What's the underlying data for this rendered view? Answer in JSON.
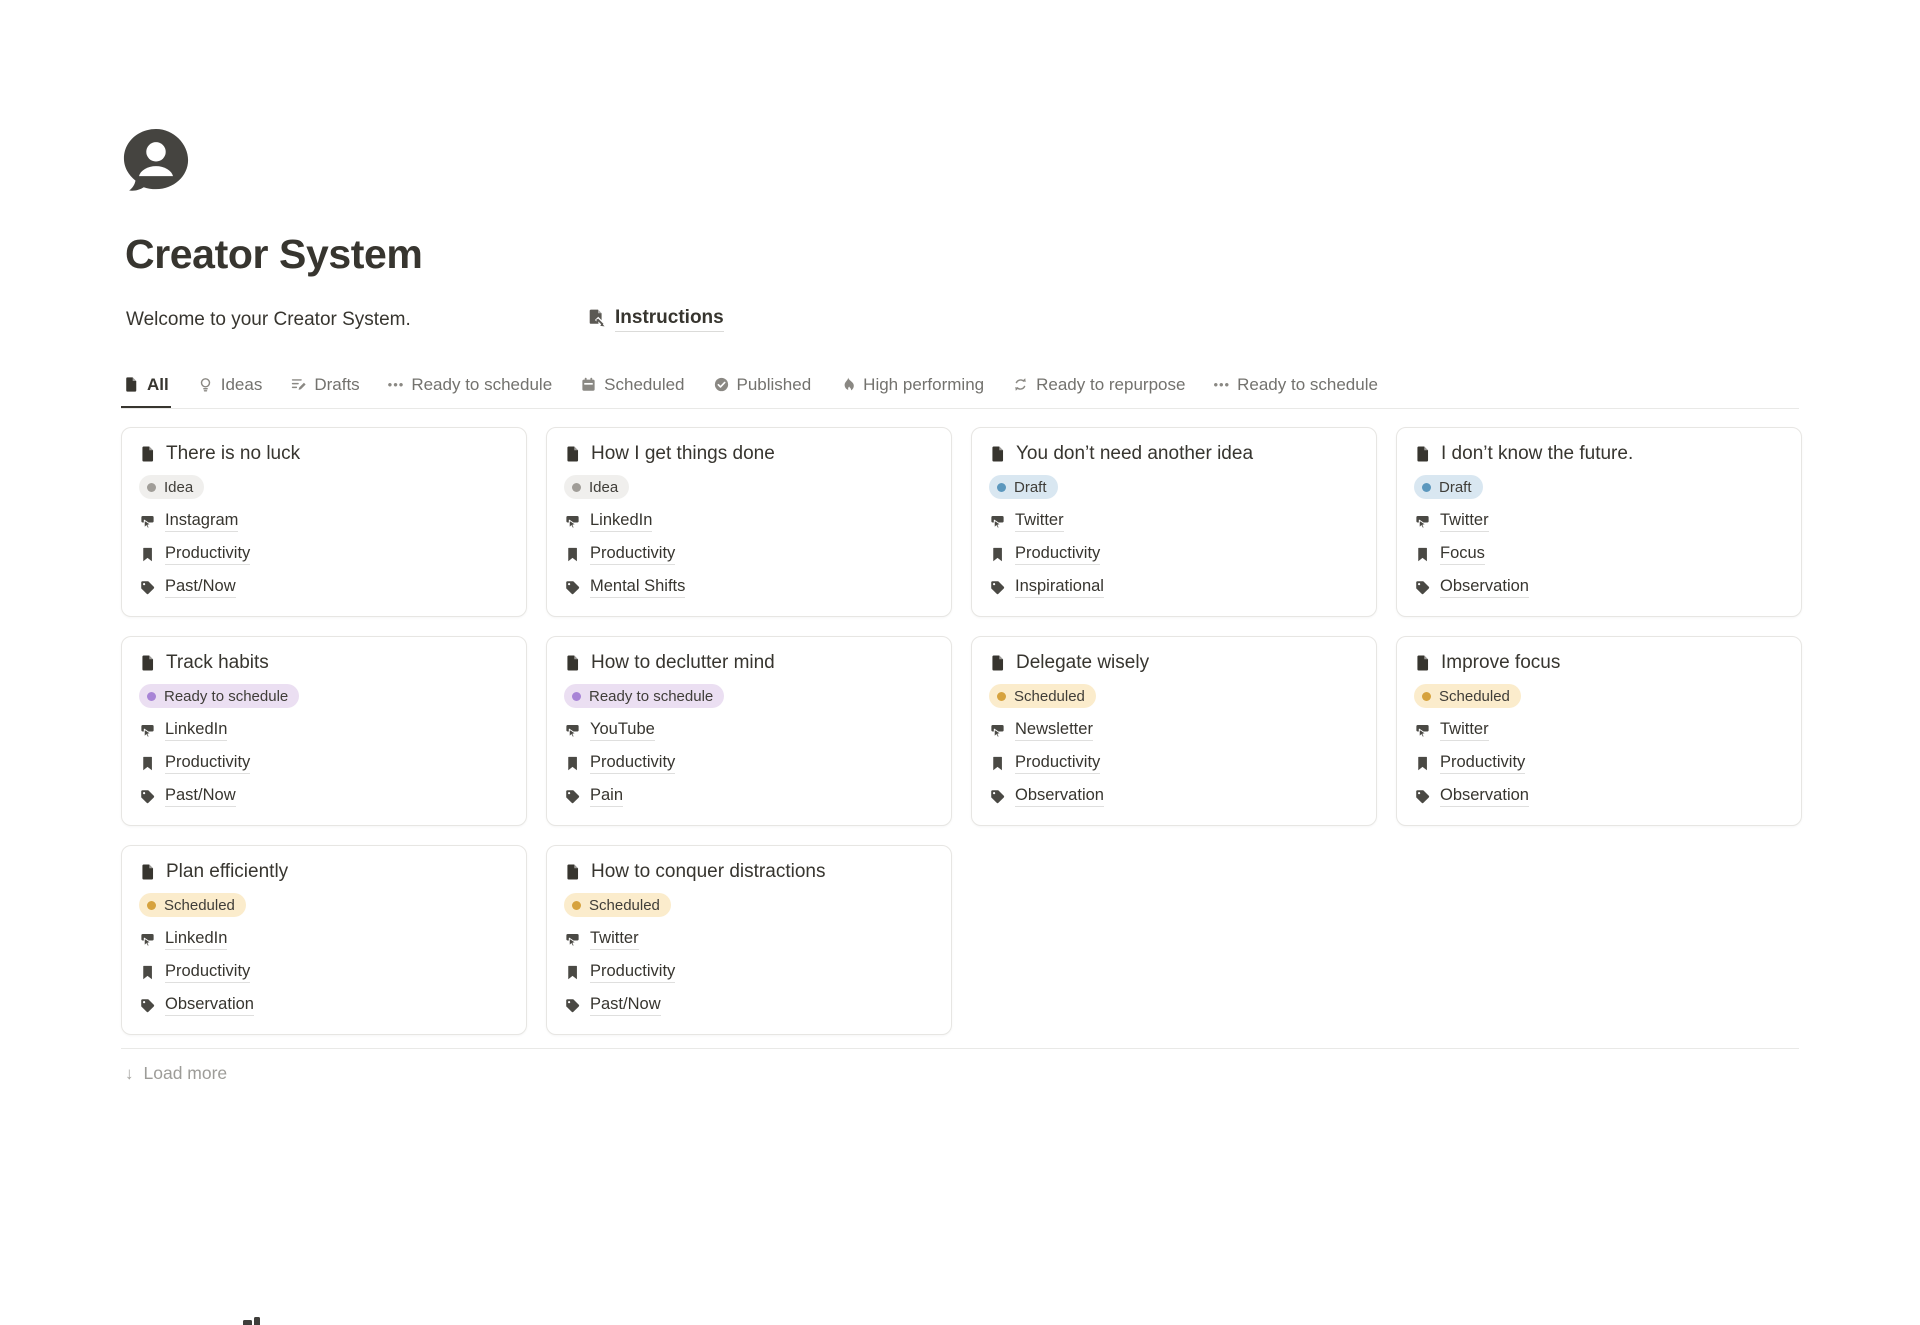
{
  "page": {
    "icon": "person-speech-bubble",
    "title": "Creator System",
    "welcome": "Welcome to your Creator System.",
    "instructions_label": "Instructions"
  },
  "tabs": [
    {
      "label": "All",
      "icon": "page",
      "active": true
    },
    {
      "label": "Ideas",
      "icon": "bulb",
      "active": false
    },
    {
      "label": "Drafts",
      "icon": "draft",
      "active": false
    },
    {
      "label": "Ready to schedule",
      "icon": "dots",
      "active": false
    },
    {
      "label": "Scheduled",
      "icon": "calendar",
      "active": false
    },
    {
      "label": "Published",
      "icon": "check",
      "active": false
    },
    {
      "label": "High performing",
      "icon": "flame",
      "active": false
    },
    {
      "label": "Ready to repurpose",
      "icon": "cycle",
      "active": false
    },
    {
      "label": "Ready to schedule",
      "icon": "dots",
      "active": false
    }
  ],
  "status_colors": {
    "Idea": {
      "bg": "#f0efed",
      "dot": "#a09d98"
    },
    "Draft": {
      "bg": "#d9e7f1",
      "dot": "#5b97bd"
    },
    "Ready to schedule": {
      "bg": "#ebdff2",
      "dot": "#a884d6"
    },
    "Scheduled": {
      "bg": "#fbeccc",
      "dot": "#d6a23e"
    }
  },
  "cards": [
    {
      "title": "There is no luck",
      "status": "Idea",
      "channel": "Instagram",
      "category": "Productivity",
      "tag": "Past/Now"
    },
    {
      "title": "How I get things done",
      "status": "Idea",
      "channel": "LinkedIn",
      "category": "Productivity",
      "tag": "Mental Shifts"
    },
    {
      "title": "You don’t need another idea",
      "status": "Draft",
      "channel": "Twitter",
      "category": "Productivity",
      "tag": "Inspirational"
    },
    {
      "title": "I don’t know the future.",
      "status": "Draft",
      "channel": "Twitter",
      "category": "Focus",
      "tag": "Observation"
    },
    {
      "title": "Track habits",
      "status": "Ready to schedule",
      "channel": "LinkedIn",
      "category": "Productivity",
      "tag": "Past/Now"
    },
    {
      "title": "How to declutter mind",
      "status": "Ready to schedule",
      "channel": "YouTube",
      "category": "Productivity",
      "tag": "Pain"
    },
    {
      "title": "Delegate wisely",
      "status": "Scheduled",
      "channel": "Newsletter",
      "category": "Productivity",
      "tag": "Observation"
    },
    {
      "title": "Improve focus",
      "status": "Scheduled",
      "channel": "Twitter",
      "category": "Productivity",
      "tag": "Observation"
    },
    {
      "title": "Plan efficiently",
      "status": "Scheduled",
      "channel": "LinkedIn",
      "category": "Productivity",
      "tag": "Observation"
    },
    {
      "title": "How to conquer distractions",
      "status": "Scheduled",
      "channel": "Twitter",
      "category": "Productivity",
      "tag": "Past/Now"
    }
  ],
  "load_more_label": "Load more",
  "colors": {
    "text_dark": "#37352f",
    "text_gray": "#73726e",
    "divider": "#e9e9e7",
    "icon_dark": "#454440"
  }
}
